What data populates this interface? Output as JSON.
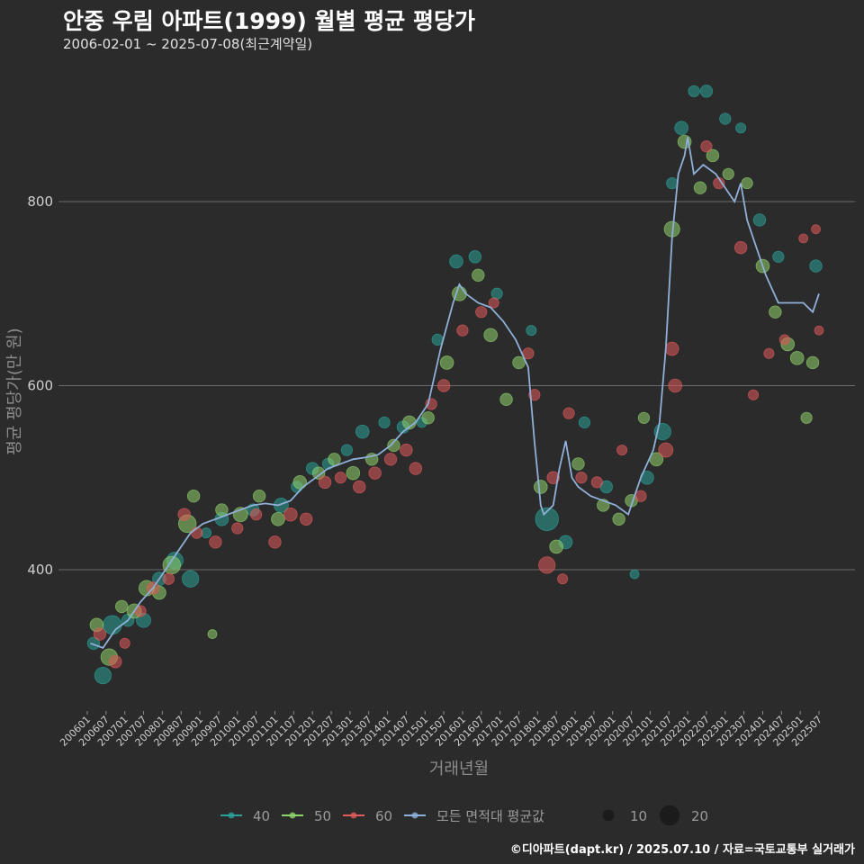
{
  "header": {
    "title": "안중 우림 아파트(1999) 월별 평균 평당가",
    "subtitle": "2006-02-01 ~ 2025-07-08(최근계약일)"
  },
  "footer": {
    "credit": "©디아파트(dapt.kr) / 2025.07.10 / 자료=국토교통부 실거래가"
  },
  "chart_data": {
    "type": "scatter",
    "title": "안중 우림 아파트(1999) 월별 평균 평당가",
    "xlabel": "거래년월",
    "ylabel": "평균 평당가(만 원)",
    "ylim": [
      240,
      950
    ],
    "y_ticks": [
      400,
      600,
      800
    ],
    "x_ticks": [
      "200601",
      "200607",
      "200701",
      "200707",
      "200801",
      "200807",
      "200901",
      "200907",
      "201001",
      "201007",
      "201101",
      "201107",
      "201201",
      "201207",
      "201301",
      "201307",
      "201401",
      "201407",
      "201501",
      "201507",
      "201601",
      "201607",
      "201701",
      "201707",
      "201801",
      "201807",
      "201901",
      "201907",
      "202001",
      "202007",
      "202101",
      "202107",
      "202201",
      "202207",
      "202301",
      "202307",
      "202401",
      "202407",
      "202501",
      "202507"
    ],
    "legend": {
      "series": [
        {
          "name": "40",
          "color": "#2aa198"
        },
        {
          "name": "50",
          "color": "#8fd16b"
        },
        {
          "name": "60",
          "color": "#e05a5a"
        },
        {
          "name": "모든 면적대 평균값",
          "color": "#8fb0d8"
        }
      ],
      "sizes": [
        {
          "label": "10",
          "value": 10
        },
        {
          "label": "20",
          "value": 20
        }
      ]
    },
    "average_line": {
      "name": "모든 면적대 평균값",
      "x": [
        "200602",
        "200606",
        "200610",
        "200702",
        "200706",
        "200710",
        "200802",
        "200806",
        "200810",
        "200902",
        "200906",
        "200910",
        "201002",
        "201006",
        "201010",
        "201102",
        "201106",
        "201110",
        "201202",
        "201206",
        "201210",
        "201302",
        "201306",
        "201310",
        "201402",
        "201406",
        "201410",
        "201502",
        "201506",
        "201510",
        "201512",
        "201602",
        "201606",
        "201610",
        "201702",
        "201706",
        "201710",
        "201712",
        "201802",
        "201803",
        "201806",
        "201808",
        "201810",
        "201812",
        "201902",
        "201906",
        "201910",
        "202002",
        "202006",
        "202008",
        "202010",
        "202102",
        "202104",
        "202106",
        "202108",
        "202110",
        "202112",
        "202201",
        "202203",
        "202206",
        "202210",
        "202302",
        "202304",
        "202306",
        "202308",
        "202310",
        "202312",
        "202402",
        "202406",
        "202410",
        "202502",
        "202505",
        "202507"
      ],
      "y": [
        320,
        315,
        335,
        345,
        365,
        380,
        400,
        420,
        440,
        450,
        455,
        460,
        465,
        470,
        472,
        470,
        475,
        490,
        500,
        510,
        515,
        520,
        522,
        525,
        535,
        550,
        560,
        580,
        640,
        690,
        710,
        700,
        690,
        685,
        670,
        650,
        620,
        540,
        470,
        460,
        470,
        510,
        540,
        500,
        490,
        480,
        475,
        470,
        460,
        480,
        500,
        530,
        560,
        640,
        760,
        830,
        850,
        870,
        830,
        840,
        830,
        810,
        800,
        820,
        780,
        760,
        740,
        720,
        690,
        690,
        690,
        680,
        700
      ]
    },
    "series": [
      {
        "name": "40",
        "points": [
          {
            "x": "200603",
            "y": 320,
            "size": 8
          },
          {
            "x": "200606",
            "y": 285,
            "size": 12
          },
          {
            "x": "200609",
            "y": 340,
            "size": 14
          },
          {
            "x": "200702",
            "y": 345,
            "size": 8
          },
          {
            "x": "200707",
            "y": 345,
            "size": 10
          },
          {
            "x": "200712",
            "y": 390,
            "size": 9
          },
          {
            "x": "200805",
            "y": 410,
            "size": 12
          },
          {
            "x": "200810",
            "y": 390,
            "size": 12
          },
          {
            "x": "200903",
            "y": 440,
            "size": 6
          },
          {
            "x": "200908",
            "y": 455,
            "size": 9
          },
          {
            "x": "201006",
            "y": 465,
            "size": 8
          },
          {
            "x": "201103",
            "y": 470,
            "size": 10
          },
          {
            "x": "201108",
            "y": 490,
            "size": 7
          },
          {
            "x": "201201",
            "y": 510,
            "size": 8
          },
          {
            "x": "201206",
            "y": 515,
            "size": 7
          },
          {
            "x": "201212",
            "y": 530,
            "size": 7
          },
          {
            "x": "201305",
            "y": 550,
            "size": 9
          },
          {
            "x": "201312",
            "y": 560,
            "size": 7
          },
          {
            "x": "201406",
            "y": 555,
            "size": 8
          },
          {
            "x": "201412",
            "y": 560,
            "size": 6
          },
          {
            "x": "201505",
            "y": 650,
            "size": 7
          },
          {
            "x": "201511",
            "y": 735,
            "size": 9
          },
          {
            "x": "201605",
            "y": 740,
            "size": 8
          },
          {
            "x": "201612",
            "y": 700,
            "size": 7
          },
          {
            "x": "201711",
            "y": 660,
            "size": 6
          },
          {
            "x": "201804",
            "y": 455,
            "size": 18
          },
          {
            "x": "201810",
            "y": 430,
            "size": 9
          },
          {
            "x": "201904",
            "y": 560,
            "size": 7
          },
          {
            "x": "201911",
            "y": 490,
            "size": 8
          },
          {
            "x": "202008",
            "y": 395,
            "size": 5
          },
          {
            "x": "202012",
            "y": 500,
            "size": 9
          },
          {
            "x": "202105",
            "y": 550,
            "size": 12
          },
          {
            "x": "202108",
            "y": 820,
            "size": 7
          },
          {
            "x": "202111",
            "y": 880,
            "size": 9
          },
          {
            "x": "202203",
            "y": 920,
            "size": 7
          },
          {
            "x": "202207",
            "y": 920,
            "size": 8
          },
          {
            "x": "202301",
            "y": 890,
            "size": 7
          },
          {
            "x": "202306",
            "y": 880,
            "size": 6
          },
          {
            "x": "202312",
            "y": 780,
            "size": 8
          },
          {
            "x": "202406",
            "y": 740,
            "size": 7
          },
          {
            "x": "202506",
            "y": 730,
            "size": 8
          }
        ]
      },
      {
        "name": "50",
        "points": [
          {
            "x": "200604",
            "y": 340,
            "size": 9
          },
          {
            "x": "200608",
            "y": 305,
            "size": 12
          },
          {
            "x": "200612",
            "y": 360,
            "size": 8
          },
          {
            "x": "200704",
            "y": 355,
            "size": 10
          },
          {
            "x": "200708",
            "y": 380,
            "size": 11
          },
          {
            "x": "200712",
            "y": 375,
            "size": 9
          },
          {
            "x": "200804",
            "y": 405,
            "size": 13
          },
          {
            "x": "200809",
            "y": 450,
            "size": 13
          },
          {
            "x": "200811",
            "y": 480,
            "size": 8
          },
          {
            "x": "200905",
            "y": 330,
            "size": 5
          },
          {
            "x": "200908",
            "y": 465,
            "size": 8
          },
          {
            "x": "201002",
            "y": 460,
            "size": 10
          },
          {
            "x": "201008",
            "y": 480,
            "size": 8
          },
          {
            "x": "201102",
            "y": 455,
            "size": 9
          },
          {
            "x": "201109",
            "y": 495,
            "size": 9
          },
          {
            "x": "201203",
            "y": 505,
            "size": 8
          },
          {
            "x": "201208",
            "y": 520,
            "size": 8
          },
          {
            "x": "201302",
            "y": 505,
            "size": 9
          },
          {
            "x": "201308",
            "y": 520,
            "size": 8
          },
          {
            "x": "201403",
            "y": 535,
            "size": 8
          },
          {
            "x": "201408",
            "y": 560,
            "size": 9
          },
          {
            "x": "201502",
            "y": 565,
            "size": 8
          },
          {
            "x": "201508",
            "y": 625,
            "size": 9
          },
          {
            "x": "201512",
            "y": 700,
            "size": 10
          },
          {
            "x": "201606",
            "y": 720,
            "size": 8
          },
          {
            "x": "201610",
            "y": 655,
            "size": 9
          },
          {
            "x": "201703",
            "y": 585,
            "size": 8
          },
          {
            "x": "201707",
            "y": 625,
            "size": 8
          },
          {
            "x": "201802",
            "y": 490,
            "size": 9
          },
          {
            "x": "201807",
            "y": 425,
            "size": 9
          },
          {
            "x": "201902",
            "y": 515,
            "size": 8
          },
          {
            "x": "201910",
            "y": 470,
            "size": 8
          },
          {
            "x": "202003",
            "y": 455,
            "size": 8
          },
          {
            "x": "202007",
            "y": 475,
            "size": 8
          },
          {
            "x": "202011",
            "y": 565,
            "size": 7
          },
          {
            "x": "202103",
            "y": 520,
            "size": 9
          },
          {
            "x": "202108",
            "y": 770,
            "size": 11
          },
          {
            "x": "202112",
            "y": 865,
            "size": 9
          },
          {
            "x": "202205",
            "y": 815,
            "size": 8
          },
          {
            "x": "202209",
            "y": 850,
            "size": 8
          },
          {
            "x": "202302",
            "y": 830,
            "size": 7
          },
          {
            "x": "202308",
            "y": 820,
            "size": 7
          },
          {
            "x": "202401",
            "y": 730,
            "size": 9
          },
          {
            "x": "202405",
            "y": 680,
            "size": 8
          },
          {
            "x": "202409",
            "y": 645,
            "size": 9
          },
          {
            "x": "202412",
            "y": 630,
            "size": 9
          },
          {
            "x": "202503",
            "y": 565,
            "size": 7
          },
          {
            "x": "202505",
            "y": 625,
            "size": 8
          }
        ]
      },
      {
        "name": "60",
        "points": [
          {
            "x": "200605",
            "y": 330,
            "size": 8
          },
          {
            "x": "200610",
            "y": 300,
            "size": 8
          },
          {
            "x": "200701",
            "y": 320,
            "size": 6
          },
          {
            "x": "200706",
            "y": 355,
            "size": 7
          },
          {
            "x": "200710",
            "y": 380,
            "size": 8
          },
          {
            "x": "200803",
            "y": 390,
            "size": 7
          },
          {
            "x": "200808",
            "y": 460,
            "size": 8
          },
          {
            "x": "200812",
            "y": 440,
            "size": 7
          },
          {
            "x": "200906",
            "y": 430,
            "size": 8
          },
          {
            "x": "201001",
            "y": 445,
            "size": 7
          },
          {
            "x": "201007",
            "y": 460,
            "size": 7
          },
          {
            "x": "201101",
            "y": 430,
            "size": 8
          },
          {
            "x": "201106",
            "y": 460,
            "size": 9
          },
          {
            "x": "201111",
            "y": 455,
            "size": 8
          },
          {
            "x": "201205",
            "y": 495,
            "size": 8
          },
          {
            "x": "201210",
            "y": 500,
            "size": 7
          },
          {
            "x": "201304",
            "y": 490,
            "size": 8
          },
          {
            "x": "201309",
            "y": 505,
            "size": 8
          },
          {
            "x": "201402",
            "y": 520,
            "size": 8
          },
          {
            "x": "201407",
            "y": 530,
            "size": 8
          },
          {
            "x": "201410",
            "y": 510,
            "size": 8
          },
          {
            "x": "201503",
            "y": 580,
            "size": 7
          },
          {
            "x": "201507",
            "y": 600,
            "size": 8
          },
          {
            "x": "201601",
            "y": 660,
            "size": 7
          },
          {
            "x": "201607",
            "y": 680,
            "size": 7
          },
          {
            "x": "201611",
            "y": 690,
            "size": 6
          },
          {
            "x": "201710",
            "y": 635,
            "size": 7
          },
          {
            "x": "201712",
            "y": 590,
            "size": 7
          },
          {
            "x": "201804",
            "y": 405,
            "size": 12
          },
          {
            "x": "201806",
            "y": 500,
            "size": 8
          },
          {
            "x": "201809",
            "y": 390,
            "size": 6
          },
          {
            "x": "201811",
            "y": 570,
            "size": 7
          },
          {
            "x": "201903",
            "y": 500,
            "size": 7
          },
          {
            "x": "201908",
            "y": 495,
            "size": 7
          },
          {
            "x": "202004",
            "y": 530,
            "size": 6
          },
          {
            "x": "202010",
            "y": 480,
            "size": 7
          },
          {
            "x": "202106",
            "y": 530,
            "size": 10
          },
          {
            "x": "202108",
            "y": 640,
            "size": 9
          },
          {
            "x": "202109",
            "y": 600,
            "size": 9
          },
          {
            "x": "202207",
            "y": 860,
            "size": 7
          },
          {
            "x": "202211",
            "y": 820,
            "size": 7
          },
          {
            "x": "202306",
            "y": 750,
            "size": 8
          },
          {
            "x": "202310",
            "y": 590,
            "size": 6
          },
          {
            "x": "202403",
            "y": 635,
            "size": 6
          },
          {
            "x": "202408",
            "y": 650,
            "size": 6
          },
          {
            "x": "202502",
            "y": 760,
            "size": 5
          },
          {
            "x": "202506",
            "y": 770,
            "size": 5
          },
          {
            "x": "202507",
            "y": 660,
            "size": 5
          }
        ]
      }
    ]
  }
}
